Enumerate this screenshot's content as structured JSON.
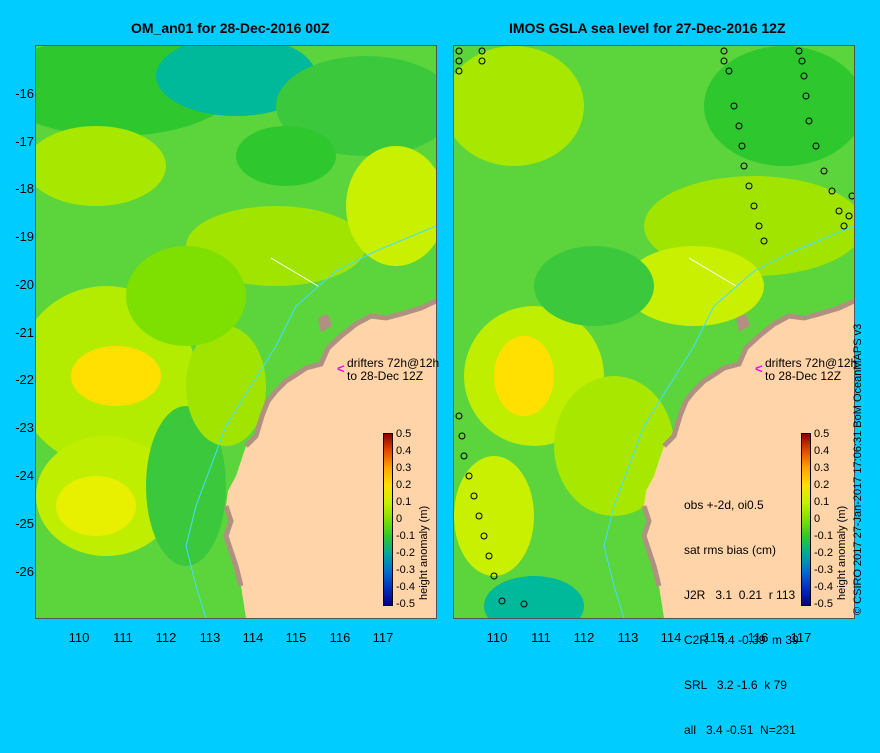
{
  "left_panel": {
    "title": "OM_an01 for 28-Dec-2016 00Z",
    "drifters_line1": "drifters 72h@12h",
    "drifters_line2": "to 28-Dec 12Z"
  },
  "right_panel": {
    "title": "IMOS GSLA sea level  for 27-Dec-2016 12Z",
    "drifters_line1": "drifters 72h@12h",
    "drifters_line2": "to 28-Dec 12Z",
    "stats": {
      "line1": "obs +-2d, oi0.5",
      "line2": "sat rms bias (cm)",
      "rows": [
        "J2R   3.1  0.21  r 113",
        "C2R   4.4 -0.39  m 39",
        "SRL   3.2 -1.6  k 79",
        "all   3.4 -0.51  N=231"
      ]
    }
  },
  "axes": {
    "lat_ticks": [
      "-16",
      "-17",
      "-18",
      "-19",
      "-20",
      "-21",
      "-22",
      "-23",
      "-24",
      "-25",
      "-26"
    ],
    "lon_ticks": [
      "110",
      "111",
      "112",
      "113",
      "114",
      "115",
      "116",
      "117"
    ]
  },
  "colorbar": {
    "label": "height anomaly (m)",
    "ticks": [
      "0.5",
      "0.4",
      "0.3",
      "0.2",
      "0.1",
      "0",
      "-0.1",
      "-0.2",
      "-0.3",
      "-0.4",
      "-0.5"
    ],
    "colors": [
      "#8b0000",
      "#e34a00",
      "#ffa500",
      "#ffe000",
      "#c8f000",
      "#7ee000",
      "#2ec82e",
      "#00a8a0",
      "#0070d0",
      "#0030c0",
      "#000080"
    ]
  },
  "colors": {
    "background": "#00ccff",
    "land": "#ffd4a8",
    "coast": "#b09080",
    "sea_mid": "#5cd43c"
  },
  "credit": "© CSIRO 2017   27-Jan-2017 17:06:31 BoM OceanMAPS v3"
}
